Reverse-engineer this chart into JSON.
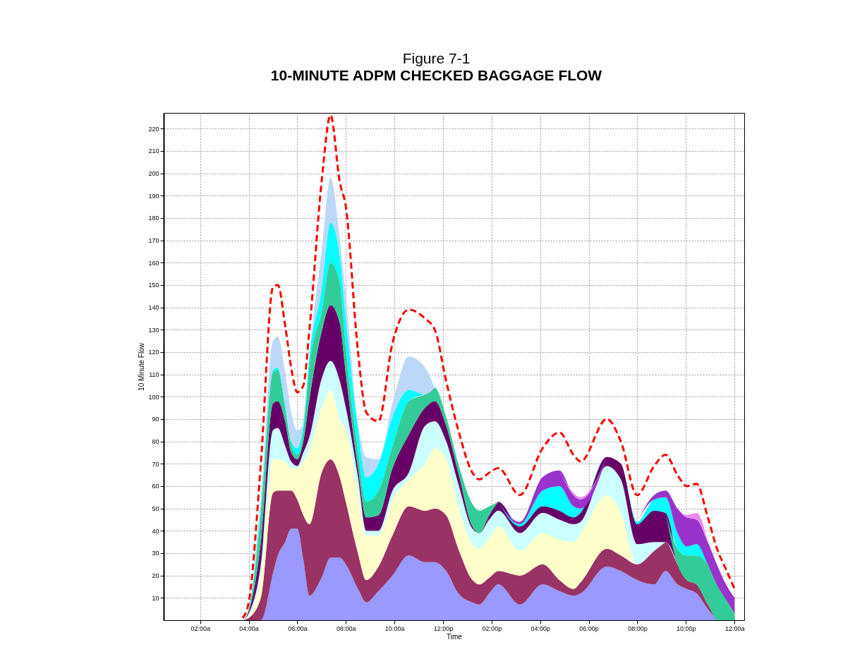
{
  "chart_data": {
    "type": "area",
    "title": "Figure 7-1",
    "subtitle": "10-MINUTE ADPM CHECKED BAGGAGE FLOW",
    "xlabel": "Time",
    "ylabel": "10 Minute Flow",
    "stacked": true,
    "grid": true,
    "legend": false,
    "xlim": [
      0.5,
      24.4
    ],
    "ylim": [
      0,
      227
    ],
    "xticks": [
      {
        "value": 2,
        "label": "02:00a"
      },
      {
        "value": 4,
        "label": "04:00a"
      },
      {
        "value": 6,
        "label": "06:00a"
      },
      {
        "value": 8,
        "label": "08:00a"
      },
      {
        "value": 10,
        "label": "10:00a"
      },
      {
        "value": 12,
        "label": "12:00p"
      },
      {
        "value": 14,
        "label": "02:00p"
      },
      {
        "value": 16,
        "label": "04:00p"
      },
      {
        "value": 18,
        "label": "06:00p"
      },
      {
        "value": 20,
        "label": "08:00p"
      },
      {
        "value": 22,
        "label": "10:00p"
      },
      {
        "value": 24,
        "label": "12:00a"
      }
    ],
    "yticks": [
      10,
      20,
      30,
      40,
      50,
      60,
      70,
      80,
      90,
      100,
      110,
      120,
      130,
      140,
      150,
      160,
      170,
      180,
      190,
      200,
      210,
      220
    ],
    "x": [
      3.75,
      4.0,
      4.5,
      5.0,
      5.2,
      5.5,
      5.75,
      6.0,
      6.25,
      6.5,
      7.0,
      7.37,
      7.75,
      8.0,
      8.5,
      8.84,
      9.34,
      9.92,
      10.59,
      11.26,
      11.66,
      12.13,
      12.63,
      13.21,
      13.5,
      13.9,
      14.28,
      15.16,
      16.1,
      16.79,
      17.37,
      17.66,
      18.74,
      19.32,
      19.99,
      20.69,
      21.16,
      21.65,
      22.03,
      22.44,
      22.9,
      23.31,
      23.6,
      24.0
    ],
    "series": [
      {
        "color": "#9999ff",
        "values": [
          null,
          null,
          0,
          21,
          29,
          35,
          41,
          41,
          27,
          11,
          19,
          28,
          28,
          25,
          14,
          8,
          13,
          20,
          29,
          26,
          26,
          22,
          12,
          8,
          7,
          12,
          16,
          7,
          16,
          13,
          11,
          12,
          24,
          22,
          18,
          16,
          22,
          16,
          14,
          12,
          5,
          0,
          null,
          null
        ]
      },
      {
        "color": "#993366",
        "values": [
          0,
          1,
          10,
          36,
          29,
          23,
          17,
          13,
          20,
          32,
          47,
          44,
          36,
          28,
          16,
          10,
          11,
          18,
          22,
          23,
          24,
          25,
          20,
          10,
          9,
          7,
          6,
          13,
          9,
          5,
          3,
          5,
          8,
          7,
          7,
          15,
          13,
          9,
          4,
          4,
          2,
          0,
          null,
          null
        ]
      },
      {
        "color": "#ffffcc",
        "values": [
          0,
          1,
          10,
          15,
          14,
          13,
          10,
          14,
          24,
          33,
          29,
          31,
          26,
          32,
          28,
          20,
          14,
          16,
          12,
          21,
          27,
          25,
          19,
          16,
          16,
          18,
          20,
          11,
          14,
          18,
          21,
          22,
          24,
          19,
          0,
          null,
          null,
          null,
          null,
          null,
          null,
          null,
          null,
          null
        ]
      },
      {
        "color": "#ccffff",
        "values": [
          0,
          1,
          5,
          13,
          14,
          7,
          3,
          1,
          4,
          6,
          13,
          13,
          17,
          10,
          6,
          2,
          2,
          4,
          3,
          17,
          12,
          8,
          10,
          7,
          7,
          8,
          7,
          8,
          9,
          9,
          8,
          5,
          13,
          15,
          9,
          4,
          0,
          null,
          null,
          null,
          null,
          null,
          null,
          null
        ]
      },
      {
        "color": "#660066",
        "values": [
          0,
          1,
          10,
          12,
          12,
          11,
          4,
          3,
          5,
          17,
          21,
          25,
          26,
          15,
          4,
          6,
          7,
          10,
          17,
          8,
          9,
          7,
          5,
          1,
          0,
          2,
          4,
          3,
          3,
          4,
          3,
          4,
          4,
          7,
          9,
          14,
          13,
          0,
          null,
          null,
          null,
          null,
          null,
          null
        ]
      },
      {
        "color": "#33cc99",
        "values": [
          0,
          1,
          13,
          14,
          14,
          6,
          4,
          2,
          5,
          15,
          9,
          19,
          18,
          12,
          8,
          7,
          11,
          10,
          15,
          6,
          6,
          4,
          4,
          10,
          10,
          4,
          0,
          null,
          null,
          null,
          null,
          null,
          null,
          null,
          null,
          null,
          0,
          7,
          11,
          13,
          18,
          15,
          10,
          3
        ]
      },
      {
        "color": "#00ffff",
        "values": [
          null,
          0,
          2,
          1,
          1,
          2,
          1,
          3,
          3,
          4,
          10,
          18,
          12,
          13,
          10,
          11,
          12,
          13,
          5,
          0,
          null,
          null,
          null,
          null,
          null,
          null,
          0,
          1,
          7,
          11,
          5,
          2,
          0,
          0,
          1,
          5,
          7,
          7,
          4,
          5,
          0,
          null,
          null,
          null
        ]
      },
      {
        "color": "#bcd8f8",
        "values": [
          null,
          0,
          5,
          13,
          14,
          14,
          13,
          8,
          0,
          1,
          17,
          20,
          8,
          10,
          2,
          9,
          2,
          6,
          15,
          12,
          0,
          null,
          null,
          null,
          null,
          null,
          null,
          null,
          null,
          null,
          null,
          null,
          null,
          null,
          null,
          null,
          null,
          null,
          null,
          null,
          null,
          null,
          null,
          null
        ]
      },
      {
        "color": "#9933cc",
        "values": [
          null,
          null,
          null,
          null,
          null,
          null,
          null,
          null,
          null,
          null,
          null,
          null,
          null,
          null,
          null,
          null,
          null,
          null,
          null,
          null,
          null,
          null,
          null,
          null,
          null,
          null,
          0,
          1,
          6,
          7,
          5,
          4,
          0,
          null,
          0,
          2,
          3,
          11,
          13,
          11,
          10,
          9,
          7,
          7
        ]
      },
      {
        "color": "#ee88ee",
        "values": [
          null,
          null,
          null,
          null,
          null,
          null,
          null,
          null,
          null,
          null,
          null,
          null,
          null,
          null,
          null,
          null,
          null,
          null,
          null,
          null,
          null,
          null,
          null,
          null,
          null,
          null,
          null,
          null,
          null,
          0,
          1,
          1,
          0,
          null,
          null,
          null,
          null,
          0,
          1,
          3,
          0,
          null,
          null,
          null
        ]
      },
      {
        "type": "line",
        "color": "#ff0000",
        "line_style": "dashed",
        "values": [
          1,
          8,
          70,
          149,
          150,
          132,
          113,
          102,
          105,
          130,
          196,
          226,
          196,
          185,
          120,
          93,
          89,
          124,
          139,
          135,
          130,
          107,
          85,
          66,
          63,
          66,
          68,
          56,
          77,
          84,
          74,
          71,
          90,
          80,
          56,
          69,
          74,
          65,
          60,
          61,
          46,
          31,
          24,
          14
        ]
      }
    ]
  }
}
